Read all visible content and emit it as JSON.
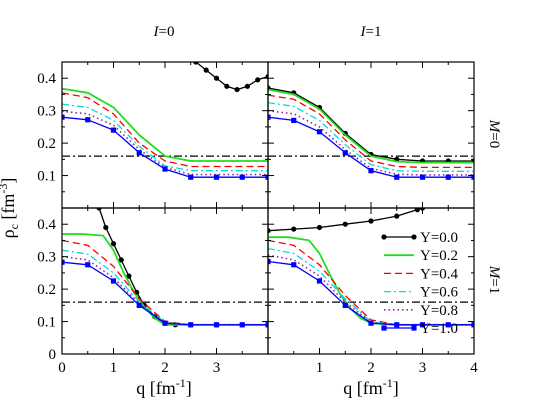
{
  "figure": {
    "column_titles": [
      {
        "letter": "I",
        "value": "=0"
      },
      {
        "letter": "I",
        "value": "=1"
      }
    ],
    "row_titles": [
      {
        "letter": "M",
        "value": "=0"
      },
      {
        "letter": "M",
        "value": "=1"
      }
    ],
    "ylabel": {
      "main": "ρ",
      "sub": "c",
      "unit_open": " [fm",
      "unit_exp": "-3",
      "unit_close": "]"
    },
    "xlabel": {
      "main": "q [fm",
      "unit_exp": "-1",
      "unit_close": "]"
    }
  },
  "chart_data": {
    "type": "line",
    "xlim": [
      0,
      4
    ],
    "ylim": [
      0,
      0.45
    ],
    "x_ticks": [
      0,
      1,
      2,
      3,
      4
    ],
    "y_ticks": [
      0,
      0.1,
      0.2,
      0.3,
      0.4
    ],
    "x_tick_labels": [
      "0",
      "1",
      "2",
      "3",
      "4"
    ],
    "y_tick_labels": [
      "0",
      "0.1",
      "0.2",
      "0.3",
      "0.4"
    ],
    "grid": false,
    "legend_position": "panel M=1, I=1, right",
    "series_styles": [
      {
        "name": "Y=0.0",
        "color": "#000000",
        "dash": "",
        "marker": "circle",
        "width": 1.3
      },
      {
        "name": "Y=0.2",
        "color": "#22dd22",
        "dash": "",
        "marker": "",
        "width": 1.8
      },
      {
        "name": "Y=0.4",
        "color": "#ff0000",
        "dash": "7,4",
        "marker": "",
        "width": 1.3
      },
      {
        "name": "Y=0.6",
        "color": "#00dddd",
        "dash": "7,3,2,3",
        "marker": "",
        "width": 1.3
      },
      {
        "name": "Y=0.8",
        "color": "#992299",
        "dash": "1.5,3",
        "marker": "",
        "width": 1.6
      },
      {
        "name": "Y=1.0",
        "color": "#0000ff",
        "dash": "",
        "marker": "square",
        "width": 1.3
      }
    ],
    "panels": [
      {
        "row": "M=0",
        "col": "I=0",
        "reference_line": 0.16,
        "series": [
          {
            "x": [
              2.6,
              2.8,
              3.0,
              3.2,
              3.4,
              3.6,
              3.8,
              4.0
            ],
            "y": [
              0.45,
              0.425,
              0.4,
              0.375,
              0.365,
              0.375,
              0.395,
              0.405
            ]
          },
          {
            "x": [
              0,
              0.5,
              1.0,
              1.5,
              2.0,
              2.5,
              3.0,
              3.5,
              4.0
            ],
            "y": [
              0.368,
              0.355,
              0.31,
              0.225,
              0.16,
              0.145,
              0.145,
              0.145,
              0.145
            ]
          },
          {
            "x": [
              0,
              0.5,
              1.0,
              1.5,
              2.0,
              2.5,
              3.0,
              3.5,
              4.0
            ],
            "y": [
              0.355,
              0.34,
              0.29,
              0.2,
              0.145,
              0.128,
              0.128,
              0.128,
              0.128
            ]
          },
          {
            "x": [
              0,
              0.5,
              1.0,
              1.5,
              2.0,
              2.5,
              3.0,
              3.5,
              4.0
            ],
            "y": [
              0.32,
              0.31,
              0.27,
              0.19,
              0.13,
              0.115,
              0.115,
              0.115,
              0.115
            ]
          },
          {
            "x": [
              0,
              0.5,
              1.0,
              1.5,
              2.0,
              2.5,
              3.0,
              3.5,
              4.0
            ],
            "y": [
              0.298,
              0.29,
              0.255,
              0.18,
              0.125,
              0.103,
              0.103,
              0.103,
              0.103
            ]
          },
          {
            "x": [
              0,
              0.5,
              1.0,
              1.5,
              2.0,
              2.5,
              3.0,
              3.5,
              4.0
            ],
            "y": [
              0.28,
              0.272,
              0.24,
              0.17,
              0.12,
              0.095,
              0.095,
              0.095,
              0.095
            ]
          }
        ]
      },
      {
        "row": "M=0",
        "col": "I=1",
        "reference_line": 0.16,
        "series": [
          {
            "x": [
              0,
              0.5,
              1.0,
              1.5,
              2.0,
              2.5,
              3.0,
              3.5,
              4.0
            ],
            "y": [
              0.37,
              0.355,
              0.31,
              0.23,
              0.165,
              0.15,
              0.145,
              0.145,
              0.145
            ]
          },
          {
            "x": [
              0,
              0.5,
              1.0,
              1.5,
              2.0,
              2.5,
              3.0,
              3.5,
              4.0
            ],
            "y": [
              0.365,
              0.35,
              0.305,
              0.225,
              0.16,
              0.143,
              0.14,
              0.14,
              0.14
            ]
          },
          {
            "x": [
              0,
              0.5,
              1.0,
              1.5,
              2.0,
              2.5,
              3.0,
              3.5,
              4.0
            ],
            "y": [
              0.348,
              0.335,
              0.29,
              0.21,
              0.145,
              0.128,
              0.125,
              0.125,
              0.125
            ]
          },
          {
            "x": [
              0,
              0.5,
              1.0,
              1.5,
              2.0,
              2.5,
              3.0,
              3.5,
              4.0
            ],
            "y": [
              0.325,
              0.313,
              0.27,
              0.195,
              0.133,
              0.115,
              0.113,
              0.113,
              0.113
            ]
          },
          {
            "x": [
              0,
              0.5,
              1.0,
              1.5,
              2.0,
              2.5,
              3.0,
              3.5,
              4.0
            ],
            "y": [
              0.3,
              0.29,
              0.25,
              0.18,
              0.122,
              0.104,
              0.102,
              0.102,
              0.102
            ]
          },
          {
            "x": [
              0,
              0.5,
              1.0,
              1.5,
              2.0,
              2.5,
              3.0,
              3.5,
              4.0
            ],
            "y": [
              0.28,
              0.27,
              0.235,
              0.17,
              0.115,
              0.095,
              0.095,
              0.095,
              0.095
            ]
          }
        ]
      },
      {
        "row": "M=1",
        "col": "I=0",
        "reference_line": 0.16,
        "series": [
          {
            "x": [
              0.72,
              0.85,
              1.0,
              1.15,
              1.3,
              1.45,
              1.6,
              1.8,
              2.0,
              2.2,
              2.5,
              3.0,
              3.5,
              4.0
            ],
            "y": [
              0.45,
              0.39,
              0.34,
              0.29,
              0.24,
              0.19,
              0.15,
              0.115,
              0.095,
              0.09,
              0.09,
              0.09,
              0.09,
              0.09
            ]
          },
          {
            "x": [
              0,
              0.4,
              0.8,
              1.0,
              1.2,
              1.4,
              1.6,
              1.8,
              2.0,
              2.5,
              3.0,
              3.5,
              4.0
            ],
            "y": [
              0.37,
              0.37,
              0.365,
              0.32,
              0.25,
              0.19,
              0.145,
              0.11,
              0.09,
              0.09,
              0.09,
              0.09,
              0.09
            ]
          },
          {
            "x": [
              0,
              0.5,
              1.0,
              1.5,
              2.0,
              2.5,
              3.0,
              3.5,
              4.0
            ],
            "y": [
              0.35,
              0.335,
              0.27,
              0.17,
              0.1,
              0.09,
              0.09,
              0.09,
              0.09
            ]
          },
          {
            "x": [
              0,
              0.5,
              1.0,
              1.5,
              2.0,
              2.5,
              3.0,
              3.5,
              4.0
            ],
            "y": [
              0.32,
              0.308,
              0.25,
              0.16,
              0.098,
              0.09,
              0.09,
              0.09,
              0.09
            ]
          },
          {
            "x": [
              0,
              0.5,
              1.0,
              1.5,
              2.0,
              2.5,
              3.0,
              3.5,
              4.0
            ],
            "y": [
              0.3,
              0.29,
              0.235,
              0.155,
              0.097,
              0.09,
              0.09,
              0.09,
              0.09
            ]
          },
          {
            "x": [
              0,
              0.5,
              1.0,
              1.5,
              2.0,
              2.5,
              3.0,
              3.5,
              4.0
            ],
            "y": [
              0.283,
              0.275,
              0.225,
              0.15,
              0.095,
              0.09,
              0.09,
              0.09,
              0.09
            ]
          }
        ]
      },
      {
        "row": "M=1",
        "col": "I=1",
        "reference_line": 0.16,
        "series": [
          {
            "x": [
              0,
              0.5,
              1.0,
              1.5,
              2.0,
              2.5,
              2.9,
              3.0
            ],
            "y": [
              0.38,
              0.385,
              0.39,
              0.4,
              0.41,
              0.425,
              0.445,
              0.45
            ]
          },
          {
            "x": [
              0,
              0.4,
              0.8,
              1.0,
              1.2,
              1.4,
              1.6,
              1.8,
              2.0,
              2.5,
              3.0,
              3.5,
              4.0
            ],
            "y": [
              0.36,
              0.36,
              0.35,
              0.31,
              0.245,
              0.185,
              0.14,
              0.11,
              0.095,
              0.09,
              0.09,
              0.09,
              0.09
            ]
          },
          {
            "x": [
              0,
              0.5,
              1.0,
              1.5,
              2.0,
              2.5,
              3.0,
              3.5,
              4.0
            ],
            "y": [
              0.35,
              0.335,
              0.275,
              0.18,
              0.105,
              0.09,
              0.09,
              0.09,
              0.09
            ]
          },
          {
            "x": [
              0,
              0.5,
              1.0,
              1.5,
              2.0,
              2.5,
              3.0,
              3.5,
              4.0
            ],
            "y": [
              0.325,
              0.31,
              0.255,
              0.17,
              0.1,
              0.09,
              0.09,
              0.09,
              0.09
            ]
          },
          {
            "x": [
              0,
              0.5,
              1.0,
              1.5,
              2.0,
              2.5,
              3.0,
              3.5,
              4.0
            ],
            "y": [
              0.305,
              0.29,
              0.24,
              0.16,
              0.097,
              0.09,
              0.09,
              0.09,
              0.09
            ]
          },
          {
            "x": [
              0,
              0.5,
              1.0,
              1.5,
              2.0,
              2.5,
              3.0,
              3.5,
              4.0
            ],
            "y": [
              0.285,
              0.275,
              0.225,
              0.15,
              0.095,
              0.09,
              0.09,
              0.09,
              0.09
            ]
          }
        ]
      }
    ]
  }
}
